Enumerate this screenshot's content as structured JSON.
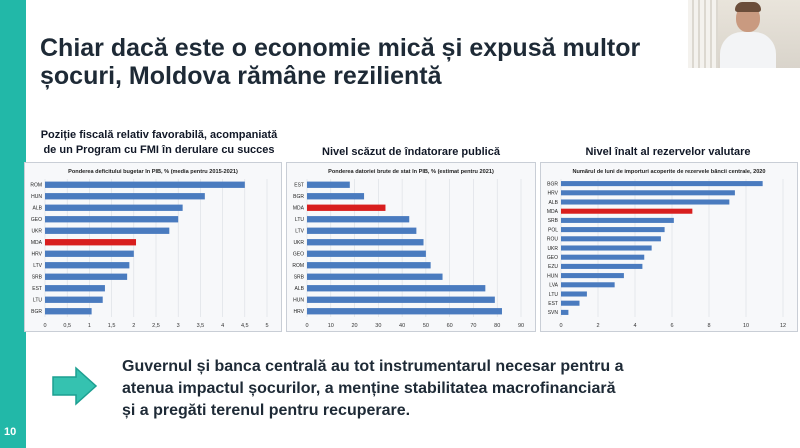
{
  "slide": {
    "number": "10",
    "title_line1": "Chiar dacă este o economie mică și expusă multor",
    "title_line2": "șocuri, Moldova rămâne rezilientă",
    "bottom_line1": "Guvernul și banca centrală au tot instrumentarul necesar pentru a",
    "bottom_line2": "atenua impactul șocurilor, a menține stabilitatea macrofinanciară",
    "bottom_line3": "și a pregăti terenul pentru recuperare.",
    "accent_color": "#22b8a8"
  },
  "sections": [
    {
      "heading_line1": "Poziție fiscală relativ favorabilă, acompaniată",
      "heading_line2": "de un Program cu FMI în derulare cu succes"
    },
    {
      "heading_line1": "Nivel scăzut de îndatorare publică"
    },
    {
      "heading_line1": "Nivel înalt al rezervelor valutare"
    }
  ],
  "chart_data": [
    {
      "type": "bar",
      "orientation": "horizontal",
      "title": "Ponderea deficitului bugetar în PIB, % (media pentru 2015-2021)",
      "categories": [
        "ROM",
        "HUN",
        "ALB",
        "GEO",
        "UKR",
        "MDA",
        "HRV",
        "LTV",
        "SRB",
        "EST",
        "LTU",
        "BGR"
      ],
      "values": [
        4.5,
        3.6,
        3.1,
        3.0,
        2.8,
        2.05,
        2.0,
        1.9,
        1.85,
        1.35,
        1.3,
        1.05
      ],
      "highlight": "MDA",
      "xlim": [
        0,
        5
      ],
      "ticks": [
        "0",
        "0,5",
        "1",
        "1,5",
        "2",
        "2,5",
        "3",
        "3,5",
        "4",
        "4,5",
        "5"
      ],
      "tick_values": [
        0,
        0.5,
        1,
        1.5,
        2,
        2.5,
        3,
        3.5,
        4,
        4.5,
        5
      ],
      "bar_color": "#4a7bbf",
      "highlight_color": "#d81e1e",
      "grid": true
    },
    {
      "type": "bar",
      "orientation": "horizontal",
      "title": "Ponderea datoriei brute de stat în PIB, % (estimat pentru 2021)",
      "categories": [
        "EST",
        "BGR",
        "MDA",
        "LTU",
        "LTV",
        "UKR",
        "GEO",
        "ROM",
        "SRB",
        "ALB",
        "HUN",
        "HRV"
      ],
      "values": [
        18,
        24,
        33,
        43,
        46,
        49,
        50,
        52,
        57,
        75,
        79,
        82
      ],
      "highlight": "MDA",
      "xlim": [
        0,
        90
      ],
      "ticks": [
        "0",
        "10",
        "20",
        "30",
        "40",
        "50",
        "60",
        "70",
        "80",
        "90"
      ],
      "tick_values": [
        0,
        10,
        20,
        30,
        40,
        50,
        60,
        70,
        80,
        90
      ],
      "bar_color": "#4a7bbf",
      "highlight_color": "#d81e1e",
      "grid": true
    },
    {
      "type": "bar",
      "orientation": "horizontal",
      "title": "Numărul de luni de importuri acoperite de rezervele băncii centrale, 2020",
      "categories": [
        "BGR",
        "HRV",
        "ALB",
        "MDA",
        "SRB",
        "POL",
        "ROU",
        "UKR",
        "GEO",
        "EZU",
        "HUN",
        "LVA",
        "LTU",
        "EST",
        "SVN"
      ],
      "values": [
        10.9,
        9.4,
        9.1,
        7.1,
        6.1,
        5.6,
        5.4,
        4.9,
        4.5,
        4.4,
        3.4,
        2.9,
        1.4,
        1.0,
        0.4
      ],
      "highlight": "MDA",
      "xlim": [
        0,
        12
      ],
      "ticks": [
        "0",
        "2",
        "4",
        "6",
        "8",
        "10",
        "12"
      ],
      "tick_values": [
        0,
        2,
        4,
        6,
        8,
        10,
        12
      ],
      "bar_color": "#4a7bbf",
      "highlight_color": "#d81e1e",
      "grid": true
    }
  ]
}
